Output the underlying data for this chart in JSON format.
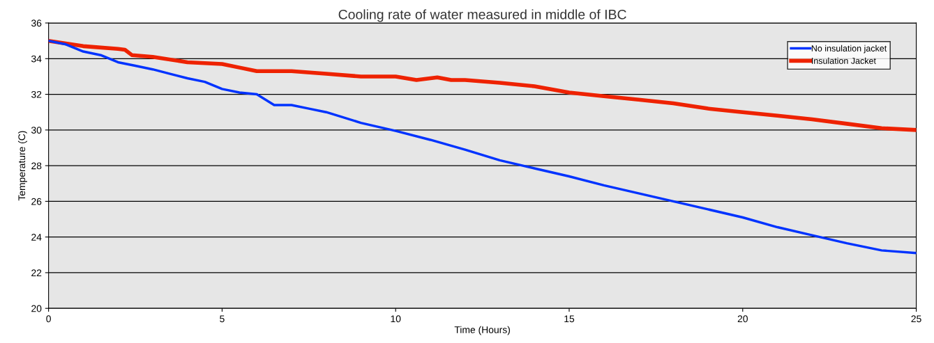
{
  "chart_data": {
    "type": "line",
    "title": "Cooling rate of water measured in middle of IBC",
    "xlabel": "Time (Hours)",
    "ylabel": "Temperature (C)",
    "xlim": [
      0,
      25
    ],
    "xticks": [
      0,
      5,
      10,
      15,
      20,
      25
    ],
    "ylim": [
      20,
      36
    ],
    "yticks": [
      20,
      22,
      24,
      26,
      28,
      30,
      32,
      34,
      36
    ],
    "grid": "y",
    "legend": "top right",
    "marker": "none",
    "line_style": "solid",
    "series": [
      {
        "name": "No insulation jacket",
        "color": "#0033ff",
        "x": [
          0,
          0.5,
          1,
          1.5,
          2,
          2.5,
          3,
          3.5,
          4,
          4.5,
          5,
          5.5,
          6,
          6.5,
          7,
          7.5,
          8,
          9,
          10,
          11,
          12,
          13,
          14,
          15,
          16,
          17,
          18,
          19,
          20,
          21,
          22,
          23,
          24,
          25
        ],
        "values": [
          35.0,
          34.8,
          34.4,
          34.2,
          33.8,
          33.6,
          33.4,
          33.15,
          32.9,
          32.7,
          32.3,
          32.1,
          32.0,
          31.4,
          31.4,
          31.2,
          31.0,
          30.4,
          29.95,
          29.45,
          28.9,
          28.3,
          27.85,
          27.4,
          26.9,
          26.45,
          26.0,
          25.55,
          25.1,
          24.55,
          24.1,
          23.65,
          23.25,
          23.1
        ]
      },
      {
        "name": "Insulation Jacket",
        "color": "#ee2200",
        "x": [
          0,
          1,
          2,
          2.2,
          2.4,
          3,
          4,
          5,
          5.5,
          6,
          7,
          8,
          9,
          10,
          10.6,
          11.2,
          11.6,
          12,
          13,
          14,
          15,
          16,
          17,
          18,
          19,
          20,
          21,
          22,
          23,
          24,
          25
        ],
        "values": [
          35.0,
          34.7,
          34.55,
          34.5,
          34.2,
          34.1,
          33.8,
          33.7,
          33.5,
          33.3,
          33.3,
          33.15,
          33.0,
          33.0,
          32.8,
          32.95,
          32.8,
          32.8,
          32.65,
          32.45,
          32.1,
          31.9,
          31.7,
          31.5,
          31.2,
          31.0,
          30.8,
          30.6,
          30.35,
          30.1,
          30.0
        ]
      }
    ]
  }
}
